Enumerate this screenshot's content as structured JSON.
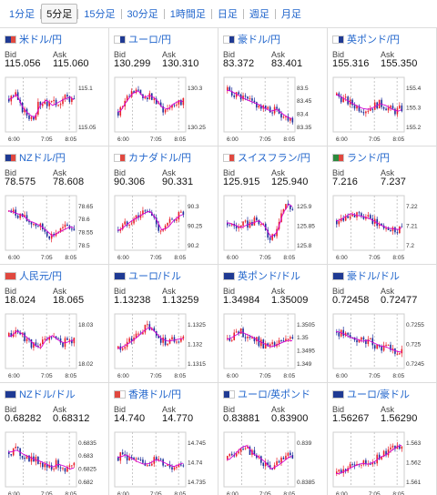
{
  "tabs": [
    {
      "label": "1分足",
      "active": false
    },
    {
      "label": "5分足",
      "active": true
    },
    {
      "label": "15分足",
      "active": false
    },
    {
      "label": "30分足",
      "active": false
    },
    {
      "label": "1時間足",
      "active": false
    },
    {
      "label": "日足",
      "active": false
    },
    {
      "label": "週足",
      "active": false
    },
    {
      "label": "月足",
      "active": false
    }
  ],
  "labels": {
    "bid": "Bid",
    "ask": "Ask"
  },
  "colors": {
    "link": "#2266cc",
    "up": "#e8202a",
    "down": "#1d2f9a",
    "ma": "#d400d4",
    "grid": "#dcdcdc"
  },
  "pairs": [
    {
      "name": "米ドル/円",
      "flag": [
        "#1f3a93",
        "#e0483f"
      ],
      "bid": "115.056",
      "ask": "115.060",
      "y_ticks": [
        "115.1",
        "115.05"
      ],
      "x_ticks": [
        "6:00",
        "7:05",
        "8:05"
      ],
      "trend": [
        0.62,
        0.72,
        0.44,
        0.3,
        0.22,
        0.5,
        0.6,
        0.48,
        0.55,
        0.62,
        0.66,
        0.56
      ]
    },
    {
      "name": "ユーロ/円",
      "flag": [
        "#ffffff",
        "#1f3a93"
      ],
      "bid": "130.299",
      "ask": "130.310",
      "y_ticks": [
        "130.3",
        "130.25"
      ],
      "x_ticks": [
        "6:00",
        "7:05",
        "8:05"
      ],
      "trend": [
        0.35,
        0.55,
        0.72,
        0.8,
        0.65,
        0.7,
        0.62,
        0.45,
        0.4,
        0.52,
        0.58,
        0.55
      ]
    },
    {
      "name": "豪ドル/円",
      "flag": [
        "#ffffff",
        "#1f3a93"
      ],
      "bid": "83.372",
      "ask": "83.401",
      "y_ticks": [
        "83.5",
        "83.45",
        "83.4",
        "83.35"
      ],
      "x_ticks": [
        "6:00",
        "7:05",
        "8:05"
      ],
      "trend": [
        0.8,
        0.74,
        0.66,
        0.6,
        0.55,
        0.5,
        0.42,
        0.36,
        0.4,
        0.3,
        0.22,
        0.2
      ]
    },
    {
      "name": "英ポンド/円",
      "flag": [
        "#ffffff",
        "#1f3a93"
      ],
      "bid": "155.316",
      "ask": "155.350",
      "y_ticks": [
        "155.4",
        "155.3",
        "155.2"
      ],
      "x_ticks": [
        "6:00",
        "7:05",
        "8:05"
      ],
      "trend": [
        0.7,
        0.62,
        0.55,
        0.48,
        0.42,
        0.4,
        0.45,
        0.52,
        0.48,
        0.4,
        0.36,
        0.42
      ]
    },
    {
      "name": "NZドル/円",
      "flag": [
        "#1f3a93",
        "#e0483f"
      ],
      "bid": "78.575",
      "ask": "78.608",
      "y_ticks": [
        "78.65",
        "78.6",
        "78.55",
        "78.5"
      ],
      "x_ticks": [
        "6:00",
        "7:05",
        "8:05"
      ],
      "trend": [
        0.75,
        0.7,
        0.66,
        0.55,
        0.5,
        0.44,
        0.34,
        0.22,
        0.3,
        0.36,
        0.42,
        0.38
      ]
    },
    {
      "name": "カナダドル/円",
      "flag": [
        "#ffffff",
        "#e0483f"
      ],
      "bid": "90.306",
      "ask": "90.331",
      "y_ticks": [
        "90.3",
        "90.25",
        "90.2"
      ],
      "x_ticks": [
        "6:00",
        "7:05",
        "8:05"
      ],
      "trend": [
        0.35,
        0.45,
        0.55,
        0.62,
        0.7,
        0.75,
        0.6,
        0.35,
        0.4,
        0.55,
        0.65,
        0.7
      ]
    },
    {
      "name": "スイスフラン/円",
      "flag": [
        "#ffffff",
        "#e0483f"
      ],
      "bid": "125.915",
      "ask": "125.940",
      "y_ticks": [
        "125.9",
        "125.85",
        "125.8"
      ],
      "x_ticks": [
        "6:00",
        "7:05",
        "8:05"
      ],
      "trend": [
        0.5,
        0.45,
        0.4,
        0.46,
        0.5,
        0.55,
        0.42,
        0.2,
        0.3,
        0.7,
        0.9,
        0.8
      ]
    },
    {
      "name": "ランド/円",
      "flag": [
        "#2c8a3e",
        "#e0483f"
      ],
      "bid": "7.216",
      "ask": "7.237",
      "y_ticks": [
        "7.22",
        "7.21",
        "7.2"
      ],
      "x_ticks": [
        "6:00",
        "7:05",
        "8:05"
      ],
      "trend": [
        0.55,
        0.62,
        0.7,
        0.66,
        0.64,
        0.6,
        0.54,
        0.46,
        0.4,
        0.38,
        0.36,
        0.42
      ]
    },
    {
      "name": "人民元/円",
      "flag": [
        "#e0483f",
        "#e0483f"
      ],
      "bid": "18.024",
      "ask": "18.065",
      "y_ticks": [
        "18.03",
        "18.02"
      ],
      "x_ticks": [
        "6:00",
        "7:05",
        "8:05"
      ],
      "trend": [
        0.6,
        0.72,
        0.65,
        0.55,
        0.42,
        0.35,
        0.55,
        0.62,
        0.52,
        0.46,
        0.5,
        0.55
      ]
    },
    {
      "name": "ユーロ/ドル",
      "flag": [
        "#1f3a93",
        "#1f3a93"
      ],
      "bid": "1.13238",
      "ask": "1.13259",
      "y_ticks": [
        "1.1325",
        "1.132",
        "1.1315"
      ],
      "x_ticks": [
        "6:00",
        "7:05",
        "8:05"
      ],
      "trend": [
        0.35,
        0.42,
        0.5,
        0.6,
        0.72,
        0.8,
        0.68,
        0.55,
        0.5,
        0.52,
        0.55,
        0.56
      ]
    },
    {
      "name": "英ポンド/ドル",
      "flag": [
        "#1f3a93",
        "#1f3a93"
      ],
      "bid": "1.34984",
      "ask": "1.35009",
      "y_ticks": [
        "1.3505",
        "1.35",
        "1.3495",
        "1.349"
      ],
      "x_ticks": [
        "6:00",
        "7:05",
        "8:05"
      ],
      "trend": [
        0.55,
        0.62,
        0.7,
        0.64,
        0.58,
        0.5,
        0.44,
        0.38,
        0.42,
        0.48,
        0.52,
        0.5
      ]
    },
    {
      "name": "豪ドル/ドル",
      "flag": [
        "#1f3a93",
        "#1f3a93"
      ],
      "bid": "0.72458",
      "ask": "0.72477",
      "y_ticks": [
        "0.7255",
        "0.725",
        "0.7245"
      ],
      "x_ticks": [
        "6:00",
        "7:05",
        "8:05"
      ],
      "trend": [
        0.7,
        0.65,
        0.58,
        0.55,
        0.5,
        0.52,
        0.46,
        0.4,
        0.38,
        0.32,
        0.28,
        0.26
      ]
    },
    {
      "name": "NZドル/ドル",
      "flag": [
        "#1f3a93",
        "#1f3a93"
      ],
      "bid": "0.68282",
      "ask": "0.68312",
      "y_ticks": [
        "0.6835",
        "0.683",
        "0.6825",
        "0.682"
      ],
      "x_ticks": [
        "6:00",
        "7:05",
        "8:05"
      ],
      "trend": [
        0.66,
        0.7,
        0.62,
        0.56,
        0.5,
        0.46,
        0.4,
        0.34,
        0.4,
        0.36,
        0.3,
        0.34
      ]
    },
    {
      "name": "香港ドル/円",
      "flag": [
        "#e0483f",
        "#ffffff"
      ],
      "bid": "14.740",
      "ask": "14.770",
      "y_ticks": [
        "14.745",
        "14.74",
        "14.735"
      ],
      "x_ticks": [
        "6:00",
        "7:05",
        "8:05"
      ],
      "trend": [
        0.55,
        0.6,
        0.52,
        0.45,
        0.4,
        0.42,
        0.5,
        0.46,
        0.4,
        0.35,
        0.4,
        0.44
      ]
    },
    {
      "name": "ユーロ/英ポンド",
      "flag": [
        "#1f3a93",
        "#ffffff"
      ],
      "bid": "0.83881",
      "ask": "0.83900",
      "y_ticks": [
        "0.839",
        "0.8385"
      ],
      "x_ticks": [
        "6:00",
        "7:05",
        "8:05"
      ],
      "trend": [
        0.5,
        0.62,
        0.75,
        0.8,
        0.62,
        0.55,
        0.45,
        0.3,
        0.36,
        0.45,
        0.55,
        0.58
      ]
    },
    {
      "name": "ユーロ/豪ドル",
      "flag": [
        "#1f3a93",
        "#1f3a93"
      ],
      "bid": "1.56267",
      "ask": "1.56290",
      "y_ticks": [
        "1.563",
        "1.562",
        "1.561"
      ],
      "x_ticks": [
        "6:00",
        "7:05",
        "8:05"
      ],
      "trend": [
        0.2,
        0.25,
        0.32,
        0.38,
        0.42,
        0.4,
        0.45,
        0.55,
        0.6,
        0.7,
        0.78,
        0.82
      ]
    }
  ]
}
